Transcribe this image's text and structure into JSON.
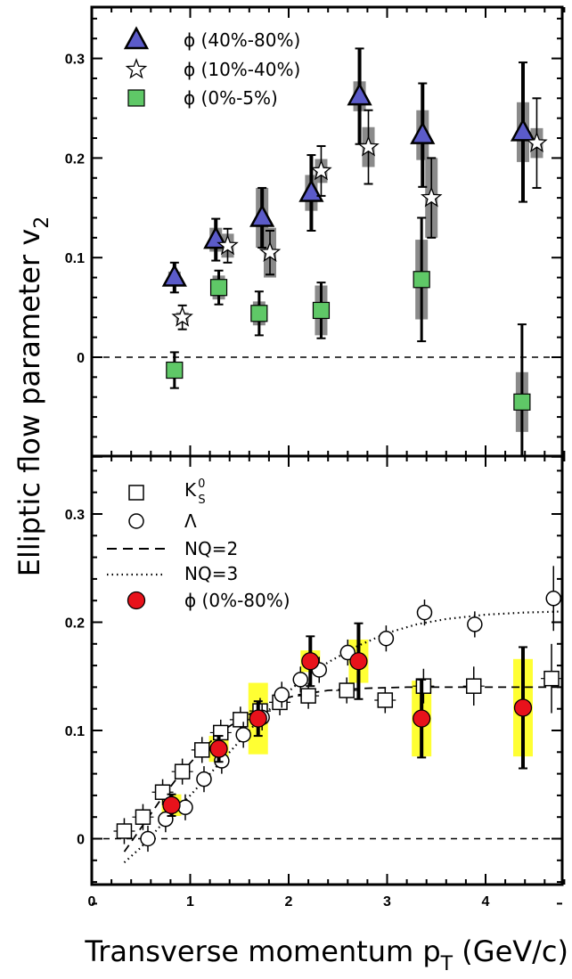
{
  "chart_data": [
    {
      "type": "scatter",
      "panel": "top",
      "xlim": [
        0,
        4.8
      ],
      "ylim": [
        -0.1,
        0.35
      ],
      "x_ticks": [
        0,
        1,
        2,
        3,
        4
      ],
      "y_ticks": [
        "0",
        "0.1",
        "0.2",
        "0.3"
      ],
      "y_tick_values": [
        0,
        0.1,
        0.2,
        0.3
      ],
      "reference_line": 0,
      "legend": [
        "ϕ (40%-80%)",
        "ϕ (10%-40%)",
        "ϕ (0%-5%)"
      ],
      "legend_placement": "top-left",
      "series": [
        {
          "name": "ϕ (40%-80%)",
          "marker": "triangle",
          "color": "#5b5bc9",
          "points": [
            {
              "x": 0.84,
              "y": 0.08,
              "stat": 0.015,
              "sys": 0.006
            },
            {
              "x": 1.26,
              "y": 0.118,
              "stat": 0.021,
              "sys": 0.012
            },
            {
              "x": 1.73,
              "y": 0.14,
              "stat": 0.03,
              "sys": 0.03
            },
            {
              "x": 2.23,
              "y": 0.165,
              "stat": 0.038,
              "sys": 0.018
            },
            {
              "x": 2.72,
              "y": 0.262,
              "stat": 0.048,
              "sys": 0.015
            },
            {
              "x": 3.36,
              "y": 0.223,
              "stat": 0.052,
              "sys": 0.025
            },
            {
              "x": 4.38,
              "y": 0.226,
              "stat": 0.07,
              "sys": 0.03
            }
          ]
        },
        {
          "name": "ϕ (10%-40%)",
          "marker": "star",
          "color": "#ffffff",
          "points": [
            {
              "x": 0.92,
              "y": 0.04,
              "stat": 0.012,
              "sys": 0.005
            },
            {
              "x": 1.38,
              "y": 0.112,
              "stat": 0.017,
              "sys": 0.012
            },
            {
              "x": 1.81,
              "y": 0.105,
              "stat": 0.022,
              "sys": 0.025
            },
            {
              "x": 2.33,
              "y": 0.187,
              "stat": 0.025,
              "sys": 0.012
            },
            {
              "x": 2.81,
              "y": 0.211,
              "stat": 0.037,
              "sys": 0.02
            },
            {
              "x": 3.45,
              "y": 0.16,
              "stat": 0.04,
              "sys": 0.04
            },
            {
              "x": 4.52,
              "y": 0.215,
              "stat": 0.045,
              "sys": 0.015
            }
          ]
        },
        {
          "name": "ϕ (0%-5%)",
          "marker": "square",
          "color": "#5fc867",
          "points": [
            {
              "x": 0.84,
              "y": -0.013,
              "stat": 0.018,
              "sys": 0.008
            },
            {
              "x": 1.29,
              "y": 0.07,
              "stat": 0.017,
              "sys": 0.012
            },
            {
              "x": 1.7,
              "y": 0.044,
              "stat": 0.022,
              "sys": 0.012
            },
            {
              "x": 2.33,
              "y": 0.047,
              "stat": 0.028,
              "sys": 0.025
            },
            {
              "x": 3.35,
              "y": 0.078,
              "stat": 0.062,
              "sys": 0.04
            },
            {
              "x": 4.37,
              "y": -0.045,
              "stat": 0.078,
              "sys": 0.03
            }
          ]
        }
      ]
    },
    {
      "type": "scatter",
      "panel": "bottom",
      "xlim": [
        0,
        4.8
      ],
      "ylim": [
        -0.065,
        0.35
      ],
      "x_ticks": [
        "0",
        "1",
        "2",
        "3",
        "4"
      ],
      "x_tick_values": [
        0,
        1,
        2,
        3,
        4
      ],
      "y_ticks": [
        "0",
        "0.1",
        "0.2",
        "0.3"
      ],
      "y_tick_values": [
        0,
        0.1,
        0.2,
        0.3
      ],
      "reference_line": 0,
      "legend_placement": "top-left",
      "series": [
        {
          "name": "K",
          "name_superscript": "0",
          "name_subscript": "S",
          "marker": "open-square",
          "points": [
            {
              "x": 0.33,
              "y": 0.007,
              "err": 0.002
            },
            {
              "x": 0.52,
              "y": 0.02,
              "err": 0.002
            },
            {
              "x": 0.72,
              "y": 0.043,
              "err": 0.003
            },
            {
              "x": 0.92,
              "y": 0.062,
              "err": 0.003
            },
            {
              "x": 1.12,
              "y": 0.082,
              "err": 0.003
            },
            {
              "x": 1.31,
              "y": 0.098,
              "err": 0.003
            },
            {
              "x": 1.51,
              "y": 0.11,
              "err": 0.004
            },
            {
              "x": 1.71,
              "y": 0.118,
              "err": 0.004
            },
            {
              "x": 1.91,
              "y": 0.126,
              "err": 0.005
            },
            {
              "x": 2.2,
              "y": 0.132,
              "err": 0.006
            },
            {
              "x": 2.59,
              "y": 0.137,
              "err": 0.008
            },
            {
              "x": 2.98,
              "y": 0.128,
              "err": 0.012
            },
            {
              "x": 3.37,
              "y": 0.141,
              "err": 0.016
            },
            {
              "x": 3.88,
              "y": 0.141,
              "err": 0.018
            },
            {
              "x": 4.67,
              "y": 0.148,
              "err": 0.032
            }
          ]
        },
        {
          "name": "Λ",
          "marker": "open-circle",
          "points": [
            {
              "x": 0.57,
              "y": 0.0,
              "err": 0.003
            },
            {
              "x": 0.75,
              "y": 0.018,
              "err": 0.003
            },
            {
              "x": 0.95,
              "y": 0.029,
              "err": 0.003
            },
            {
              "x": 1.14,
              "y": 0.055,
              "err": 0.003
            },
            {
              "x": 1.32,
              "y": 0.072,
              "err": 0.003
            },
            {
              "x": 1.54,
              "y": 0.096,
              "err": 0.004
            },
            {
              "x": 1.73,
              "y": 0.112,
              "err": 0.004
            },
            {
              "x": 1.93,
              "y": 0.133,
              "err": 0.005
            },
            {
              "x": 2.12,
              "y": 0.147,
              "err": 0.006
            },
            {
              "x": 2.31,
              "y": 0.156,
              "err": 0.007
            },
            {
              "x": 2.6,
              "y": 0.172,
              "err": 0.008
            },
            {
              "x": 2.99,
              "y": 0.185,
              "err": 0.008
            },
            {
              "x": 3.38,
              "y": 0.209,
              "err": 0.01
            },
            {
              "x": 3.89,
              "y": 0.198,
              "err": 0.012
            },
            {
              "x": 4.69,
              "y": 0.222,
              "err": 0.03
            }
          ]
        },
        {
          "name": "NQ=2",
          "line": "dashed",
          "points": [
            [
              0.33,
              -0.012
            ],
            [
              0.5,
              0.01
            ],
            [
              0.7,
              0.036
            ],
            [
              0.9,
              0.06
            ],
            [
              1.1,
              0.08
            ],
            [
              1.3,
              0.098
            ],
            [
              1.5,
              0.11
            ],
            [
              1.7,
              0.12
            ],
            [
              1.9,
              0.128
            ],
            [
              2.1,
              0.133
            ],
            [
              2.4,
              0.137
            ],
            [
              2.8,
              0.139
            ],
            [
              3.2,
              0.14
            ],
            [
              3.8,
              0.14
            ],
            [
              4.8,
              0.14
            ]
          ]
        },
        {
          "name": "NQ=3",
          "line": "dotted",
          "points": [
            [
              0.33,
              -0.022
            ],
            [
              0.5,
              -0.008
            ],
            [
              0.7,
              0.012
            ],
            [
              0.9,
              0.03
            ],
            [
              1.1,
              0.05
            ],
            [
              1.3,
              0.07
            ],
            [
              1.5,
              0.09
            ],
            [
              1.7,
              0.11
            ],
            [
              1.9,
              0.128
            ],
            [
              2.1,
              0.144
            ],
            [
              2.4,
              0.163
            ],
            [
              2.7,
              0.178
            ],
            [
              3.0,
              0.19
            ],
            [
              3.3,
              0.198
            ],
            [
              3.6,
              0.203
            ],
            [
              4.0,
              0.207
            ],
            [
              4.4,
              0.209
            ],
            [
              4.8,
              0.21
            ]
          ]
        },
        {
          "name": "ϕ (0%-80%)",
          "marker": "circle",
          "color": "#e8121b",
          "sys_color": "#ffff33",
          "points": [
            {
              "x": 0.81,
              "y": 0.031,
              "stat": 0.01,
              "sys": 0.01
            },
            {
              "x": 1.29,
              "y": 0.083,
              "stat": 0.012,
              "sys": 0.012
            },
            {
              "x": 1.69,
              "y": 0.111,
              "stat": 0.016,
              "sys": 0.033
            },
            {
              "x": 2.22,
              "y": 0.164,
              "stat": 0.023,
              "sys": 0.01
            },
            {
              "x": 2.71,
              "y": 0.164,
              "stat": 0.035,
              "sys": 0.02
            },
            {
              "x": 3.35,
              "y": 0.111,
              "stat": 0.036,
              "sys": 0.035
            },
            {
              "x": 4.38,
              "y": 0.121,
              "stat": 0.056,
              "sys": 0.045
            }
          ]
        }
      ]
    }
  ],
  "ylabel_main": "Elliptic flow parameter v",
  "ylabel_sub": "2",
  "xlabel_main": "Transverse momentum p",
  "xlabel_sub": "T",
  "xlabel_unit": " (GeV/c)"
}
